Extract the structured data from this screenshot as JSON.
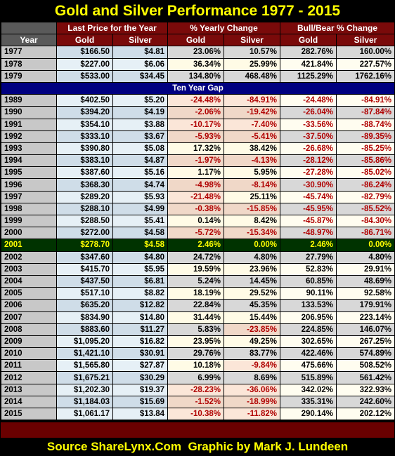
{
  "title": "Gold and Silver Performance 1977 - 2015",
  "table": {
    "group_headers": [
      "Last Price for the Year",
      "% Yearly Change",
      "Bull/Bear % Change"
    ],
    "columns": [
      "Year",
      "Gold",
      "Silver",
      "Gold",
      "Silver",
      "Gold",
      "Silver"
    ],
    "rows_before_gap": [
      [
        "1977",
        "$166.50",
        "$4.81",
        "23.06%",
        "10.57%",
        "282.76%",
        "160.00%"
      ],
      [
        "1978",
        "$227.00",
        "$6.06",
        "36.34%",
        "25.99%",
        "421.84%",
        "227.57%"
      ],
      [
        "1979",
        "$533.00",
        "$34.45",
        "134.80%",
        "468.48%",
        "1125.29%",
        "1762.16%"
      ]
    ],
    "gap_label": "Ten Year Gap",
    "rows_after_gap": [
      [
        "1989",
        "$402.50",
        "$5.20",
        "-24.48%",
        "-84.91%",
        "-24.48%",
        "-84.91%"
      ],
      [
        "1990",
        "$394.20",
        "$4.19",
        "-2.06%",
        "-19.42%",
        "-26.04%",
        "-87.84%"
      ],
      [
        "1991",
        "$354.10",
        "$3.88",
        "-10.17%",
        "-7.40%",
        "-33.56%",
        "-88.74%"
      ],
      [
        "1992",
        "$333.10",
        "$3.67",
        "-5.93%",
        "-5.41%",
        "-37.50%",
        "-89.35%"
      ],
      [
        "1993",
        "$390.80",
        "$5.08",
        "17.32%",
        "38.42%",
        "-26.68%",
        "-85.25%"
      ],
      [
        "1994",
        "$383.10",
        "$4.87",
        "-1.97%",
        "-4.13%",
        "-28.12%",
        "-85.86%"
      ],
      [
        "1995",
        "$387.60",
        "$5.16",
        "1.17%",
        "5.95%",
        "-27.28%",
        "-85.02%"
      ],
      [
        "1996",
        "$368.30",
        "$4.74",
        "-4.98%",
        "-8.14%",
        "-30.90%",
        "-86.24%"
      ],
      [
        "1997",
        "$289.20",
        "$5.93",
        "-21.48%",
        "25.11%",
        "-45.74%",
        "-82.79%"
      ],
      [
        "1998",
        "$288.10",
        "$4.99",
        "-0.38%",
        "-15.85%",
        "-45.95%",
        "-85.52%"
      ],
      [
        "1999",
        "$288.50",
        "$5.41",
        "0.14%",
        "8.42%",
        "-45.87%",
        "-84.30%"
      ],
      [
        "2000",
        "$272.00",
        "$4.58",
        "-5.72%",
        "-15.34%",
        "-48.97%",
        "-86.71%"
      ],
      [
        "2001",
        "$278.70",
        "$4.58",
        "2.46%",
        "0.00%",
        "2.46%",
        "0.00%"
      ],
      [
        "2002",
        "$347.60",
        "$4.80",
        "24.72%",
        "4.80%",
        "27.79%",
        "4.80%"
      ],
      [
        "2003",
        "$415.70",
        "$5.95",
        "19.59%",
        "23.96%",
        "52.83%",
        "29.91%"
      ],
      [
        "2004",
        "$437.50",
        "$6.81",
        "5.24%",
        "14.45%",
        "60.85%",
        "48.69%"
      ],
      [
        "2005",
        "$517.10",
        "$8.82",
        "18.19%",
        "29.52%",
        "90.11%",
        "92.58%"
      ],
      [
        "2006",
        "$635.20",
        "$12.82",
        "22.84%",
        "45.35%",
        "133.53%",
        "179.91%"
      ],
      [
        "2007",
        "$834.90",
        "$14.80",
        "31.44%",
        "15.44%",
        "206.95%",
        "223.14%"
      ],
      [
        "2008",
        "$883.60",
        "$11.27",
        "5.83%",
        "-23.85%",
        "224.85%",
        "146.07%"
      ],
      [
        "2009",
        "$1,095.20",
        "$16.82",
        "23.95%",
        "49.25%",
        "302.65%",
        "267.25%"
      ],
      [
        "2010",
        "$1,421.10",
        "$30.91",
        "29.76%",
        "83.77%",
        "422.46%",
        "574.89%"
      ],
      [
        "2011",
        "$1,565.80",
        "$27.87",
        "10.18%",
        "-9.84%",
        "475.66%",
        "508.52%"
      ],
      [
        "2012",
        "$1,675.21",
        "$30.29",
        "6.99%",
        "8.69%",
        "515.89%",
        "561.42%"
      ],
      [
        "2013",
        "$1,202.30",
        "$19.37",
        "-28.23%",
        "-36.06%",
        "342.02%",
        "322.93%"
      ],
      [
        "2014",
        "$1,184.03",
        "$15.69",
        "-1.52%",
        "-18.99%",
        "335.31%",
        "242.60%"
      ],
      [
        "2015",
        "$1,061.17",
        "$13.84",
        "-10.38%",
        "-11.82%",
        "290.14%",
        "202.12%"
      ]
    ]
  },
  "footer": "Source ShareLynx.Com  Graphic by Mark J. Lundeen"
}
